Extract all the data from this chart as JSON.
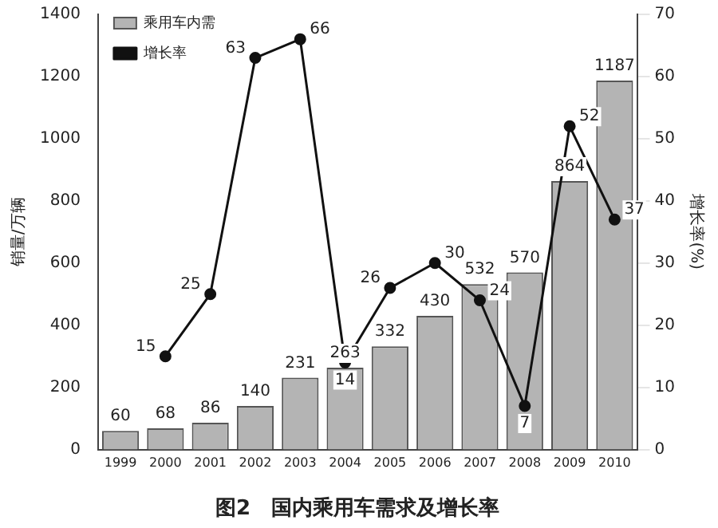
{
  "chart_data": {
    "type": "bar",
    "title": "图2　国内乘用车需求及增长率",
    "ylabel": "销量/万辆",
    "y2label": "增长率(%)",
    "categories": [
      "1999",
      "2000",
      "2001",
      "2002",
      "2003",
      "2004",
      "2005",
      "2006",
      "2007",
      "2008",
      "2009",
      "2010"
    ],
    "series": [
      {
        "name": "乘用车内需",
        "color": "#b4b4b4",
        "values": [
          60,
          68,
          86,
          140,
          231,
          263,
          332,
          430,
          532,
          570,
          864,
          1187
        ]
      },
      {
        "name": "增长率",
        "type": "line",
        "axis": "y2",
        "color": "#111111",
        "marker": "circle",
        "values": [
          null,
          15,
          25,
          63,
          66,
          14,
          26,
          30,
          24,
          7,
          52,
          37
        ]
      }
    ],
    "ylim": [
      0,
      1400
    ],
    "yticks": [
      0,
      200,
      400,
      600,
      800,
      1000,
      1200,
      1400
    ],
    "y2lim": [
      0,
      70
    ],
    "y2ticks": [
      0,
      10,
      20,
      30,
      40,
      50,
      60,
      70
    ],
    "data_labels": true,
    "legend": "top left",
    "grid": false
  }
}
